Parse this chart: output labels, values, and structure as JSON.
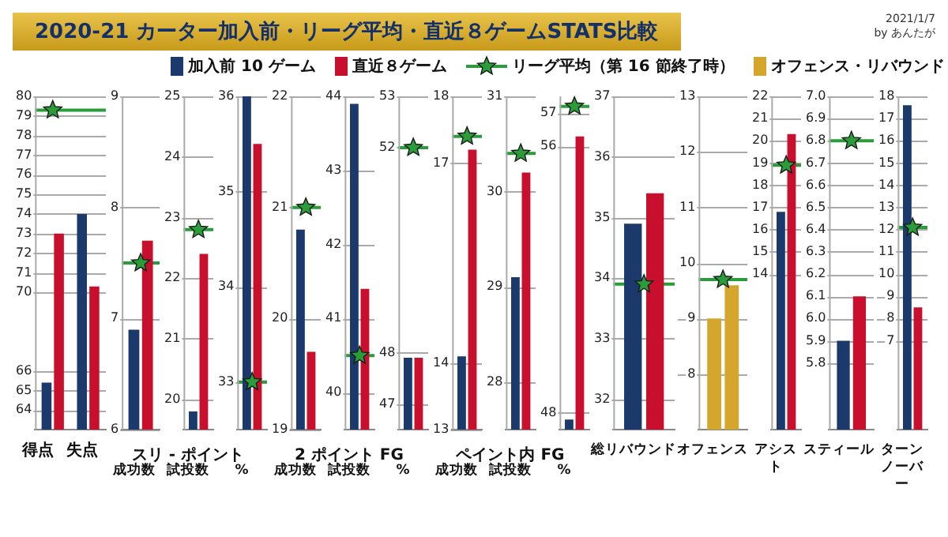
{
  "chart_data": [
    {
      "type": "bar",
      "title": "2020-21 カーター加入前・リーグ平均・直近８ゲームSTATS比較",
      "annotations": [
        "2021/1/7",
        "by あんたが"
      ],
      "legend": "top",
      "categories": [
        "得点",
        "失点"
      ],
      "ylim": [
        63,
        80
      ],
      "yticks": [
        64,
        65,
        66,
        70,
        71,
        72,
        73,
        74,
        75,
        76,
        77,
        78,
        79,
        80
      ],
      "grid": "y",
      "series": [
        {
          "name": "加入前 10 ゲーム",
          "color": "#1b3a6b",
          "values": [
            65.4,
            74.0
          ]
        },
        {
          "name": "直近８ゲーム",
          "color": "#c8102e",
          "values": [
            73.0,
            70.3
          ]
        },
        {
          "name": "リーグ平均（第 16 節終了時）",
          "type": "scatter",
          "marker": "star",
          "color": "#2a9d3a",
          "values": [
            79.3,
            null
          ]
        }
      ],
      "ref_lines": [
        {
          "axis": "y",
          "value": 79.3,
          "color": "#2a9d3a"
        }
      ]
    },
    {
      "type": "bar",
      "categories": [
        "成功数"
      ],
      "ylim": [
        6,
        9
      ],
      "yticks": [
        6,
        7,
        8,
        9
      ],
      "grid": "y",
      "series": [
        {
          "color": "#1b3a6b",
          "values": [
            6.9
          ]
        },
        {
          "color": "#c8102e",
          "values": [
            7.7
          ]
        },
        {
          "type": "scatter",
          "marker": "star",
          "color": "#2a9d3a",
          "values": [
            7.5
          ]
        }
      ],
      "ref_lines": [
        {
          "axis": "y",
          "value": 7.5,
          "color": "#2a9d3a"
        }
      ]
    },
    {
      "type": "bar",
      "xlabel": "スリ - ポイント",
      "categories": [
        "試投数"
      ],
      "ylim": [
        19.5,
        25
      ],
      "yticks": [
        20,
        21,
        22,
        23,
        24,
        25
      ],
      "grid": "y",
      "series": [
        {
          "color": "#1b3a6b",
          "values": [
            19.8
          ]
        },
        {
          "color": "#c8102e",
          "values": [
            22.4
          ]
        },
        {
          "type": "scatter",
          "marker": "star",
          "color": "#2a9d3a",
          "values": [
            22.8
          ]
        }
      ],
      "ref_lines": [
        {
          "axis": "y",
          "value": 22.8,
          "color": "#2a9d3a"
        }
      ]
    },
    {
      "type": "bar",
      "categories": [
        "%"
      ],
      "ylim": [
        32.5,
        36
      ],
      "yticks": [
        33,
        34,
        35,
        36
      ],
      "grid": "y",
      "series": [
        {
          "color": "#1b3a6b",
          "values": [
            36.0
          ]
        },
        {
          "color": "#c8102e",
          "values": [
            35.5
          ]
        },
        {
          "type": "scatter",
          "marker": "star",
          "color": "#2a9d3a",
          "values": [
            33.0
          ]
        }
      ],
      "ref_lines": [
        {
          "axis": "y",
          "value": 33.0,
          "color": "#2a9d3a"
        }
      ]
    },
    {
      "type": "bar",
      "categories": [
        "成功数"
      ],
      "ylim": [
        19,
        22
      ],
      "yticks": [
        19,
        20,
        21,
        22
      ],
      "grid": "y",
      "series": [
        {
          "color": "#1b3a6b",
          "values": [
            20.8
          ]
        },
        {
          "color": "#c8102e",
          "values": [
            19.7
          ]
        },
        {
          "type": "scatter",
          "marker": "star",
          "color": "#2a9d3a",
          "values": [
            21.0
          ]
        }
      ],
      "ref_lines": [
        {
          "axis": "y",
          "value": 21.0,
          "color": "#2a9d3a"
        }
      ]
    },
    {
      "type": "bar",
      "xlabel": "2 ポイント FG",
      "categories": [
        "試投数"
      ],
      "ylim": [
        39.5,
        44
      ],
      "yticks": [
        40,
        41,
        42,
        43,
        44
      ],
      "grid": "y",
      "series": [
        {
          "color": "#1b3a6b",
          "values": [
            43.9
          ]
        },
        {
          "color": "#c8102e",
          "values": [
            41.4
          ]
        },
        {
          "type": "scatter",
          "marker": "star",
          "color": "#2a9d3a",
          "values": [
            40.5
          ]
        }
      ],
      "ref_lines": [
        {
          "axis": "y",
          "value": 40.5,
          "color": "#2a9d3a"
        }
      ]
    },
    {
      "type": "bar",
      "categories": [
        "%"
      ],
      "ylim": [
        46.5,
        53
      ],
      "yticks": [
        47,
        48,
        52,
        53
      ],
      "grid": "y",
      "series": [
        {
          "color": "#1b3a6b",
          "values": [
            47.9
          ]
        },
        {
          "color": "#c8102e",
          "values": [
            47.9
          ]
        },
        {
          "type": "scatter",
          "marker": "star",
          "color": "#2a9d3a",
          "values": [
            52.0
          ]
        }
      ],
      "ref_lines": [
        {
          "axis": "y",
          "value": 52.0,
          "color": "#2a9d3a"
        }
      ]
    },
    {
      "type": "bar",
      "categories": [
        "成功数"
      ],
      "ylim": [
        13,
        18
      ],
      "yticks": [
        13,
        14,
        17,
        18
      ],
      "grid": "y",
      "series": [
        {
          "color": "#1b3a6b",
          "values": [
            14.1
          ]
        },
        {
          "color": "#c8102e",
          "values": [
            17.2
          ]
        },
        {
          "type": "scatter",
          "marker": "star",
          "color": "#2a9d3a",
          "values": [
            17.4
          ]
        }
      ],
      "ref_lines": [
        {
          "axis": "y",
          "value": 17.4,
          "color": "#2a9d3a"
        }
      ]
    },
    {
      "type": "bar",
      "xlabel": "ペイント内 FG",
      "categories": [
        "試投数"
      ],
      "ylim": [
        27.5,
        31
      ],
      "yticks": [
        28,
        29,
        30,
        31
      ],
      "grid": "y",
      "series": [
        {
          "color": "#1b3a6b",
          "values": [
            29.1
          ]
        },
        {
          "color": "#c8102e",
          "values": [
            30.2
          ]
        },
        {
          "type": "scatter",
          "marker": "star",
          "color": "#2a9d3a",
          "values": [
            30.4
          ]
        }
      ],
      "ref_lines": [
        {
          "axis": "y",
          "value": 30.4,
          "color": "#2a9d3a"
        }
      ]
    },
    {
      "type": "bar",
      "categories": [
        "%"
      ],
      "ylim": [
        47.5,
        57.5
      ],
      "yticks": [
        48,
        56,
        57
      ],
      "grid": "y",
      "series": [
        {
          "color": "#1b3a6b",
          "values": [
            47.8
          ]
        },
        {
          "color": "#c8102e",
          "values": [
            56.3
          ]
        },
        {
          "type": "scatter",
          "marker": "star",
          "color": "#2a9d3a",
          "values": [
            57.2
          ]
        }
      ],
      "ref_lines": [
        {
          "axis": "y",
          "value": 57.2,
          "color": "#2a9d3a"
        }
      ]
    },
    {
      "type": "bar",
      "categories": [
        "総リバウンド"
      ],
      "ylim": [
        31.5,
        37
      ],
      "yticks": [
        32,
        33,
        34,
        35,
        36,
        37
      ],
      "grid": "y",
      "series": [
        {
          "color": "#1b3a6b",
          "values": [
            34.9
          ]
        },
        {
          "color": "#c8102e",
          "values": [
            35.4
          ]
        },
        {
          "type": "scatter",
          "marker": "star",
          "color": "#2a9d3a",
          "values": [
            33.9
          ]
        }
      ],
      "ref_lines": [
        {
          "axis": "y",
          "value": 33.9,
          "color": "#2a9d3a"
        }
      ]
    },
    {
      "type": "bar",
      "categories": [
        "オフェンス"
      ],
      "ylim": [
        7,
        13
      ],
      "yticks": [
        8,
        9,
        10,
        11,
        12,
        13
      ],
      "grid": "y",
      "series": [
        {
          "name": "オフェンス・リバウンド",
          "color": "#d4a72c",
          "values": [
            9.0
          ]
        },
        {
          "color": "#d4a72c",
          "values": [
            9.6
          ]
        },
        {
          "type": "scatter",
          "marker": "star",
          "color": "#2a9d3a",
          "values": [
            9.7
          ]
        }
      ],
      "ref_lines": [
        {
          "axis": "y",
          "value": 9.7,
          "color": "#2a9d3a"
        }
      ]
    },
    {
      "type": "bar",
      "categories": [
        "アシスト"
      ],
      "ylim": [
        7,
        22
      ],
      "yticks": [
        14,
        15,
        16,
        17,
        18,
        19,
        20,
        21,
        22
      ],
      "grid": "y",
      "series": [
        {
          "color": "#1b3a6b",
          "values": [
            16.8
          ]
        },
        {
          "color": "#c8102e",
          "values": [
            20.3
          ]
        },
        {
          "type": "scatter",
          "marker": "star",
          "color": "#2a9d3a",
          "values": [
            18.9
          ]
        }
      ],
      "ref_lines": [
        {
          "axis": "y",
          "value": 18.9,
          "color": "#2a9d3a"
        }
      ]
    },
    {
      "type": "bar",
      "categories": [
        "スティール"
      ],
      "ylim": [
        5.5,
        7.0
      ],
      "yticks": [
        5.8,
        5.9,
        {
          "value": 6.0,
          "label": "6.0"
        },
        6.1,
        6.2,
        6.3,
        6.4,
        6.5,
        6.6,
        6.7,
        6.8,
        6.9,
        {
          "value": 7.0,
          "label": "7.0"
        }
      ],
      "grid": "y",
      "series": [
        {
          "color": "#1b3a6b",
          "values": [
            5.9
          ]
        },
        {
          "color": "#c8102e",
          "values": [
            6.1
          ]
        },
        {
          "type": "scatter",
          "marker": "star",
          "color": "#2a9d3a",
          "values": [
            6.8
          ]
        }
      ],
      "ref_lines": [
        {
          "axis": "y",
          "value": 6.8,
          "color": "#2a9d3a"
        }
      ]
    },
    {
      "type": "bar",
      "categories": [
        "ターンノーバー"
      ],
      "ylim": [
        3,
        18
      ],
      "yticks": [
        7,
        8,
        9,
        10,
        11,
        12,
        13,
        14,
        15,
        16,
        17,
        18
      ],
      "grid": "y",
      "series": [
        {
          "color": "#1b3a6b",
          "values": [
            17.6
          ]
        },
        {
          "color": "#c8102e",
          "values": [
            8.5
          ]
        },
        {
          "type": "scatter",
          "marker": "star",
          "color": "#2a9d3a",
          "values": [
            12.1
          ]
        }
      ],
      "ref_lines": [
        {
          "axis": "y",
          "value": 12.1,
          "color": "#2a9d3a"
        }
      ]
    }
  ]
}
